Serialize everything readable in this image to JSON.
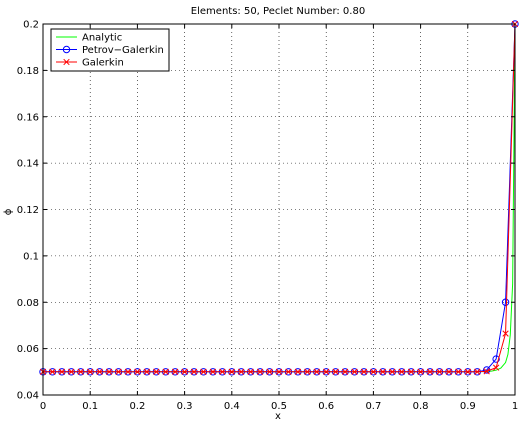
{
  "chart_data": {
    "type": "line",
    "title": "Elements: 50, Peclet Number: 0.80",
    "xlabel": "x",
    "ylabel": "ϕ",
    "xlim": [
      0,
      1
    ],
    "ylim": [
      0.04,
      0.2
    ],
    "grid": true,
    "legend_position": "top-left",
    "xticks": [
      "0",
      "0.1",
      "0.2",
      "0.3",
      "0.4",
      "0.5",
      "0.6",
      "0.7",
      "0.8",
      "0.9",
      "1"
    ],
    "yticks": [
      "0.04",
      "0.06",
      "0.08",
      "0.1",
      "0.12",
      "0.14",
      "0.16",
      "0.18",
      "0.2"
    ],
    "series": [
      {
        "name": "Analytic",
        "color": "#00ff00",
        "marker": "none",
        "x": [
          0,
          0.1,
          0.2,
          0.3,
          0.4,
          0.5,
          0.6,
          0.7,
          0.8,
          0.9,
          0.93,
          0.95,
          0.96,
          0.97,
          0.98,
          0.985,
          0.99,
          0.995,
          1.0
        ],
        "y": [
          0.05,
          0.05,
          0.05,
          0.05,
          0.05,
          0.05,
          0.05,
          0.05,
          0.05,
          0.05,
          0.0501,
          0.0503,
          0.0507,
          0.0516,
          0.054,
          0.0575,
          0.066,
          0.088,
          0.2
        ]
      },
      {
        "name": "Petrov−Galerkin",
        "color": "#0000ff",
        "marker": "circle",
        "x": [
          0,
          0.02,
          0.04,
          0.06,
          0.08,
          0.1,
          0.12,
          0.14,
          0.16,
          0.18,
          0.2,
          0.22,
          0.24,
          0.26,
          0.28,
          0.3,
          0.32,
          0.34,
          0.36,
          0.38,
          0.4,
          0.42,
          0.44,
          0.46,
          0.48,
          0.5,
          0.52,
          0.54,
          0.56,
          0.58,
          0.6,
          0.62,
          0.64,
          0.66,
          0.68,
          0.7,
          0.72,
          0.74,
          0.76,
          0.78,
          0.8,
          0.82,
          0.84,
          0.86,
          0.88,
          0.9,
          0.92,
          0.94,
          0.96,
          0.98,
          1.0
        ],
        "y": [
          0.05,
          0.05,
          0.05,
          0.05,
          0.05,
          0.05,
          0.05,
          0.05,
          0.05,
          0.05,
          0.05,
          0.05,
          0.05,
          0.05,
          0.05,
          0.05,
          0.05,
          0.05,
          0.05,
          0.05,
          0.05,
          0.05,
          0.05,
          0.05,
          0.05,
          0.05,
          0.05,
          0.05,
          0.05,
          0.05,
          0.05,
          0.05,
          0.05,
          0.05,
          0.05,
          0.05,
          0.05,
          0.05,
          0.05,
          0.05,
          0.05,
          0.05,
          0.05,
          0.05,
          0.05,
          0.05,
          0.05,
          0.0508,
          0.0555,
          0.08,
          0.2
        ]
      },
      {
        "name": "Galerkin",
        "color": "#ff0000",
        "marker": "x",
        "x": [
          0,
          0.02,
          0.04,
          0.06,
          0.08,
          0.1,
          0.12,
          0.14,
          0.16,
          0.18,
          0.2,
          0.22,
          0.24,
          0.26,
          0.28,
          0.3,
          0.32,
          0.34,
          0.36,
          0.38,
          0.4,
          0.42,
          0.44,
          0.46,
          0.48,
          0.5,
          0.52,
          0.54,
          0.56,
          0.58,
          0.6,
          0.62,
          0.64,
          0.66,
          0.68,
          0.7,
          0.72,
          0.74,
          0.76,
          0.78,
          0.8,
          0.82,
          0.84,
          0.86,
          0.88,
          0.9,
          0.92,
          0.94,
          0.96,
          0.98,
          1.0
        ],
        "y": [
          0.05,
          0.05,
          0.05,
          0.05,
          0.05,
          0.05,
          0.05,
          0.05,
          0.05,
          0.05,
          0.05,
          0.05,
          0.05,
          0.05,
          0.05,
          0.05,
          0.05,
          0.05,
          0.05,
          0.05,
          0.05,
          0.05,
          0.05,
          0.05,
          0.05,
          0.05,
          0.05,
          0.05,
          0.05,
          0.05,
          0.05,
          0.05,
          0.05,
          0.05,
          0.05,
          0.05,
          0.05,
          0.05,
          0.05,
          0.05,
          0.05,
          0.05,
          0.05,
          0.05,
          0.05,
          0.05,
          0.05,
          0.0502,
          0.0518,
          0.0665,
          0.2
        ]
      }
    ]
  }
}
